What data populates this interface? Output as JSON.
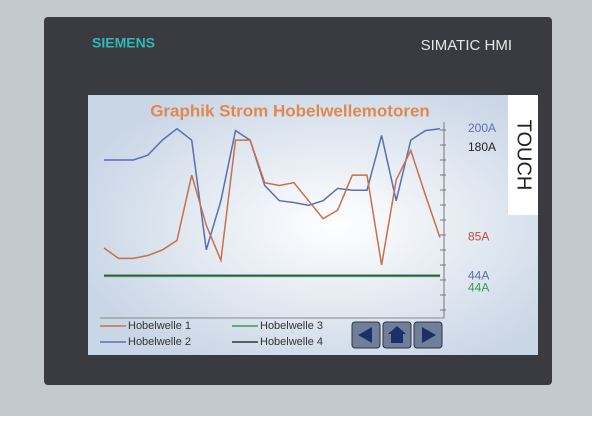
{
  "device": {
    "brand": "SIEMENS",
    "model": "SIMATIC HMI",
    "touch": "TOUCH"
  },
  "chart_data": {
    "type": "line",
    "title": "Graphik Strom Hobelwellemotoren",
    "ylim": [
      0,
      205
    ],
    "series": [
      {
        "name": "Hobelwelle 1",
        "color": "#c8704a",
        "values": [
          74,
          63,
          63,
          66,
          72,
          82,
          151,
          98,
          61,
          188,
          188,
          143,
          140,
          143,
          124,
          105,
          114,
          151,
          151,
          56,
          146,
          177,
          130,
          85
        ]
      },
      {
        "name": "Hobelwelle 2",
        "color": "#5a6fb0",
        "values": [
          167,
          167,
          167,
          172,
          188,
          200,
          188,
          72,
          124,
          198,
          188,
          140,
          124,
          122,
          119,
          124,
          137,
          135,
          135,
          193,
          124,
          188,
          198,
          200
        ]
      },
      {
        "name": "Hobelwelle 3",
        "color": "#3a9a5a",
        "values": [
          44,
          44,
          44,
          44,
          44,
          44,
          44,
          44,
          44,
          44,
          44,
          44,
          44,
          44,
          44,
          44,
          44,
          44,
          44,
          44,
          44,
          44,
          44,
          44
        ]
      },
      {
        "name": "Hobelwelle 4",
        "color": "#333333",
        "values": [
          45,
          45,
          45,
          45,
          45,
          45,
          45,
          45,
          45,
          45,
          45,
          45,
          45,
          45,
          45,
          45,
          45,
          45,
          45,
          45,
          45,
          45,
          45,
          45
        ]
      }
    ],
    "end_labels": [
      {
        "value": 200,
        "label": "200A",
        "color": "#5a6fb0"
      },
      {
        "value": 180,
        "label": "180A",
        "color": "#222222"
      },
      {
        "value": 85,
        "label": "85A",
        "color": "#c84a3a"
      },
      {
        "value": 44,
        "label": "44A",
        "color": "#5a6fb0"
      },
      {
        "value": 44,
        "label": "44A",
        "color": "#3a9a5a"
      }
    ]
  }
}
